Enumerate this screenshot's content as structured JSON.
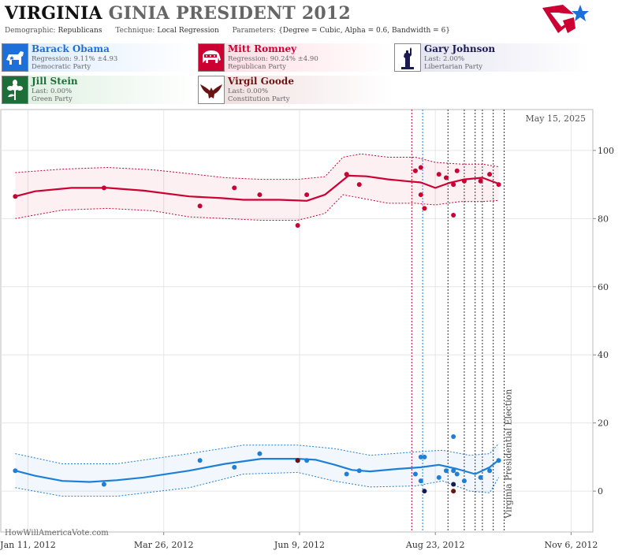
{
  "header": {
    "title_state": "VIRGINIA",
    "title_rest": "GINIA PRESIDENT 2012",
    "demographic_label": "Demographic:",
    "demographic_value": "Republicans",
    "technique_label": "Technique:",
    "technique_value": "Local Regression",
    "parameters_label": "Parameters:",
    "parameters_value": "{Degree = Cubic, Alpha = 0.6, Bandwidth = 6}"
  },
  "candidates": [
    {
      "name": "Barack Obama",
      "line2": "Regression: 9.11% ±4.93",
      "line3": "Democratic Party",
      "color": "#1e7fd8",
      "icon": "donkey-icon"
    },
    {
      "name": "Mitt Romney",
      "line2": "Regression: 90.24% ±4.90",
      "line3": "Republican Party",
      "color": "#cc0033",
      "icon": "elephant-icon"
    },
    {
      "name": "Gary Johnson",
      "line2": "Last: 2.00%",
      "line3": "Libertarian Party",
      "color": "#1a1a55",
      "icon": "statue-of-liberty-icon"
    },
    {
      "name": "Jill Stein",
      "line2": "Last: 0.00%",
      "line3": "Green Party",
      "color": "#1e6e3a",
      "icon": "flower-icon"
    },
    {
      "name": "Virgil Goode",
      "line2": "Last: 0.00%",
      "line3": "Constitution Party",
      "color": "#6b1414",
      "icon": "eagle-icon"
    }
  ],
  "watermark": "HowWillAmericaVote.com",
  "date_label": "May 15, 2025",
  "election_label": "Virginia Presidential Election",
  "chart_data": {
    "type": "scatter",
    "x_ticks": [
      "Jan 11, 2012",
      "Mar 26, 2012",
      "Jun 9, 2012",
      "Aug 23, 2012",
      "Nov 6, 2012"
    ],
    "x_tick_days": [
      11,
      86,
      161,
      236,
      311
    ],
    "y_ticks": [
      0,
      20,
      40,
      60,
      80,
      100
    ],
    "ylim": [
      -12,
      112
    ],
    "xlim": [
      -4,
      323
    ],
    "grid": true,
    "series": [
      {
        "name": "Mitt Romney",
        "color": "#cc0033",
        "points": [
          [
            4,
            86.5
          ],
          [
            53,
            89
          ],
          [
            106,
            83.7
          ],
          [
            125,
            89
          ],
          [
            139,
            87
          ],
          [
            160,
            78
          ],
          [
            165,
            87
          ],
          [
            187,
            93
          ],
          [
            194,
            90
          ],
          [
            225,
            94
          ],
          [
            228,
            95
          ],
          [
            228,
            87
          ],
          [
            230,
            83
          ],
          [
            238,
            93
          ],
          [
            242,
            92
          ],
          [
            246,
            90
          ],
          [
            248,
            94
          ],
          [
            246,
            81
          ],
          [
            252,
            91
          ],
          [
            261,
            91
          ],
          [
            266,
            93
          ],
          [
            271,
            90
          ]
        ],
        "trend": [
          [
            4,
            86.5
          ],
          [
            15,
            88
          ],
          [
            35,
            89
          ],
          [
            55,
            89
          ],
          [
            75,
            88.2
          ],
          [
            100,
            86.5
          ],
          [
            118,
            86
          ],
          [
            130,
            85.5
          ],
          [
            150,
            85.5
          ],
          [
            165,
            85.2
          ],
          [
            175,
            87
          ],
          [
            182,
            90
          ],
          [
            188,
            92.6
          ],
          [
            198,
            92.4
          ],
          [
            210,
            91.5
          ],
          [
            220,
            91
          ],
          [
            228,
            90.6
          ],
          [
            236,
            89
          ],
          [
            244,
            90.5
          ],
          [
            252,
            91.5
          ],
          [
            262,
            92
          ],
          [
            271,
            90.24
          ]
        ],
        "band_upper": [
          [
            4,
            93.5
          ],
          [
            30,
            94.5
          ],
          [
            55,
            95
          ],
          [
            80,
            94.3
          ],
          [
            100,
            93.2
          ],
          [
            120,
            92
          ],
          [
            140,
            91.5
          ],
          [
            160,
            91.5
          ],
          [
            175,
            92.3
          ],
          [
            185,
            98
          ],
          [
            195,
            99
          ],
          [
            210,
            98
          ],
          [
            225,
            98
          ],
          [
            236,
            96.5
          ],
          [
            250,
            96
          ],
          [
            262,
            96
          ],
          [
            271,
            95.2
          ]
        ],
        "band_lower": [
          [
            4,
            80
          ],
          [
            30,
            82.5
          ],
          [
            55,
            83
          ],
          [
            80,
            82.3
          ],
          [
            100,
            80.5
          ],
          [
            120,
            80
          ],
          [
            140,
            79.5
          ],
          [
            160,
            79.5
          ],
          [
            175,
            81.5
          ],
          [
            185,
            87
          ],
          [
            195,
            86
          ],
          [
            210,
            84.5
          ],
          [
            225,
            84.5
          ],
          [
            236,
            84
          ],
          [
            250,
            85
          ],
          [
            262,
            85
          ],
          [
            271,
            85.3
          ]
        ]
      },
      {
        "name": "Barack Obama",
        "color": "#1e7fd8",
        "points": [
          [
            4,
            6
          ],
          [
            53,
            2
          ],
          [
            106,
            9
          ],
          [
            125,
            7
          ],
          [
            139,
            11
          ],
          [
            160,
            9
          ],
          [
            165,
            9
          ],
          [
            187,
            5
          ],
          [
            194,
            6
          ],
          [
            225,
            5
          ],
          [
            228,
            10
          ],
          [
            230,
            10
          ],
          [
            228,
            3
          ],
          [
            238,
            4
          ],
          [
            242,
            6
          ],
          [
            246,
            6
          ],
          [
            248,
            5
          ],
          [
            246,
            16
          ],
          [
            252,
            3
          ],
          [
            261,
            4
          ],
          [
            266,
            6
          ],
          [
            271,
            9
          ]
        ],
        "trend": [
          [
            4,
            6
          ],
          [
            15,
            4.5
          ],
          [
            30,
            3
          ],
          [
            45,
            2.7
          ],
          [
            60,
            3.2
          ],
          [
            75,
            4
          ],
          [
            100,
            6
          ],
          [
            120,
            8
          ],
          [
            140,
            9.5
          ],
          [
            160,
            9.5
          ],
          [
            170,
            9.2
          ],
          [
            180,
            7.8
          ],
          [
            190,
            6.2
          ],
          [
            200,
            5.8
          ],
          [
            215,
            6.5
          ],
          [
            228,
            7
          ],
          [
            238,
            7.7
          ],
          [
            248,
            6.5
          ],
          [
            258,
            5
          ],
          [
            266,
            7
          ],
          [
            271,
            9.11
          ]
        ],
        "band_upper": [
          [
            4,
            11
          ],
          [
            30,
            8
          ],
          [
            60,
            8
          ],
          [
            100,
            11
          ],
          [
            130,
            13.5
          ],
          [
            160,
            13.5
          ],
          [
            180,
            12.5
          ],
          [
            200,
            10.5
          ],
          [
            225,
            11.5
          ],
          [
            240,
            12
          ],
          [
            255,
            10.5
          ],
          [
            266,
            11
          ],
          [
            271,
            14
          ]
        ],
        "band_lower": [
          [
            4,
            1
          ],
          [
            30,
            -1.5
          ],
          [
            60,
            -1.5
          ],
          [
            100,
            1
          ],
          [
            130,
            5
          ],
          [
            160,
            5.5
          ],
          [
            180,
            3
          ],
          [
            200,
            1.2
          ],
          [
            225,
            1.5
          ],
          [
            240,
            3
          ],
          [
            255,
            0
          ],
          [
            266,
            -0.5
          ],
          [
            271,
            4
          ]
        ]
      },
      {
        "name": "Gary Johnson",
        "color": "#1a1a55",
        "points": [
          [
            160,
            9
          ],
          [
            230,
            0
          ],
          [
            246,
            2
          ]
        ]
      },
      {
        "name": "Virgil Goode",
        "color": "#6b1414",
        "points": [
          [
            160,
            9
          ],
          [
            246,
            0
          ]
        ]
      }
    ],
    "vertical_lines": [
      {
        "x": 223,
        "color": "#cc0033"
      },
      {
        "x": 229,
        "color": "#1e7fd8"
      },
      {
        "x": 243,
        "color": "#333333"
      },
      {
        "x": 252,
        "color": "#333333"
      },
      {
        "x": 258,
        "color": "#333333"
      },
      {
        "x": 262,
        "color": "#333333"
      },
      {
        "x": 268,
        "color": "#333333"
      },
      {
        "x": 274,
        "color": "#333333"
      }
    ]
  }
}
